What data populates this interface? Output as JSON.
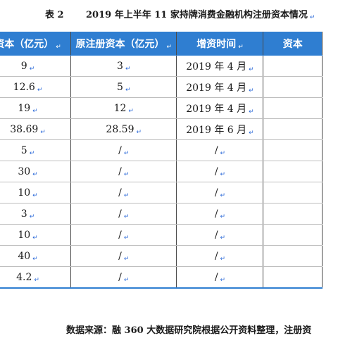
{
  "caption": {
    "label": "表 2",
    "title": "2019 年上半年 11 家持牌消费金融机构注册资本情况",
    "mark": "↵"
  },
  "mark": "↵",
  "table": {
    "headers": [
      "资本（亿元）",
      "原注册资本（亿元）",
      "增资时间",
      "资本"
    ],
    "rows": [
      [
        "9",
        "3",
        "2019 年 4 月",
        ""
      ],
      [
        "12.6",
        "5",
        "2019 年 4 月",
        ""
      ],
      [
        "19",
        "12",
        "2019 年 4 月",
        ""
      ],
      [
        "38.69",
        "28.59",
        "2019 年 6 月",
        ""
      ],
      [
        "5",
        "/",
        "/",
        ""
      ],
      [
        "30",
        "/",
        "/",
        ""
      ],
      [
        "10",
        "/",
        "/",
        ""
      ],
      [
        "3",
        "/",
        "/",
        ""
      ],
      [
        "10",
        "/",
        "/",
        ""
      ],
      [
        "40",
        "/",
        "/",
        ""
      ],
      [
        "4.2",
        "/",
        "/",
        ""
      ]
    ]
  },
  "source": "数据来源：融 360 大数据研究院根据公开资料整理，注册资"
}
